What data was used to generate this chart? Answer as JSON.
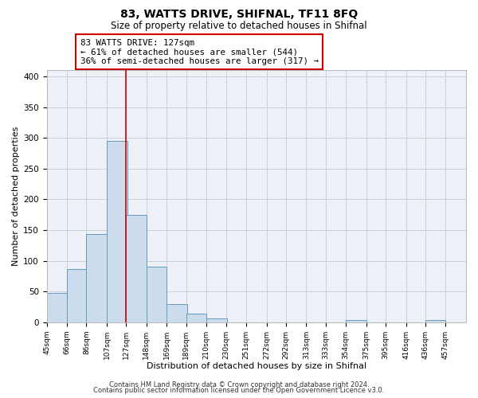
{
  "title": "83, WATTS DRIVE, SHIFNAL, TF11 8FQ",
  "subtitle": "Size of property relative to detached houses in Shifnal",
  "xlabel": "Distribution of detached houses by size in Shifnal",
  "ylabel": "Number of detached properties",
  "bar_left_edges": [
    45,
    66,
    86,
    107,
    127,
    148,
    169,
    189,
    210,
    230,
    251,
    272,
    292,
    313,
    333,
    354,
    375,
    395,
    416,
    436
  ],
  "bar_heights": [
    47,
    87,
    144,
    295,
    175,
    91,
    30,
    14,
    6,
    0,
    0,
    0,
    0,
    0,
    0,
    3,
    0,
    0,
    0,
    4
  ],
  "bin_width": 21,
  "tick_labels": [
    "45sqm",
    "66sqm",
    "86sqm",
    "107sqm",
    "127sqm",
    "148sqm",
    "169sqm",
    "189sqm",
    "210sqm",
    "230sqm",
    "251sqm",
    "272sqm",
    "292sqm",
    "313sqm",
    "333sqm",
    "354sqm",
    "375sqm",
    "395sqm",
    "416sqm",
    "436sqm",
    "457sqm"
  ],
  "tick_positions": [
    45,
    66,
    86,
    107,
    127,
    148,
    169,
    189,
    210,
    230,
    251,
    272,
    292,
    313,
    333,
    354,
    375,
    395,
    416,
    436,
    457
  ],
  "bar_color": "#ccdcec",
  "bar_edge_color": "#6699bb",
  "grid_color": "#c8d0d8",
  "background_color": "#eef2f8",
  "vline_x": 127,
  "vline_color": "#cc0000",
  "annotation_line1": "83 WATTS DRIVE: 127sqm",
  "annotation_line2": "← 61% of detached houses are smaller (544)",
  "annotation_line3": "36% of semi-detached houses are larger (317) →",
  "ylim": [
    0,
    410
  ],
  "xlim": [
    45,
    478
  ],
  "yticks": [
    0,
    50,
    100,
    150,
    200,
    250,
    300,
    350,
    400
  ],
  "footer_line1": "Contains HM Land Registry data © Crown copyright and database right 2024.",
  "footer_line2": "Contains public sector information licensed under the Open Government Licence v3.0."
}
